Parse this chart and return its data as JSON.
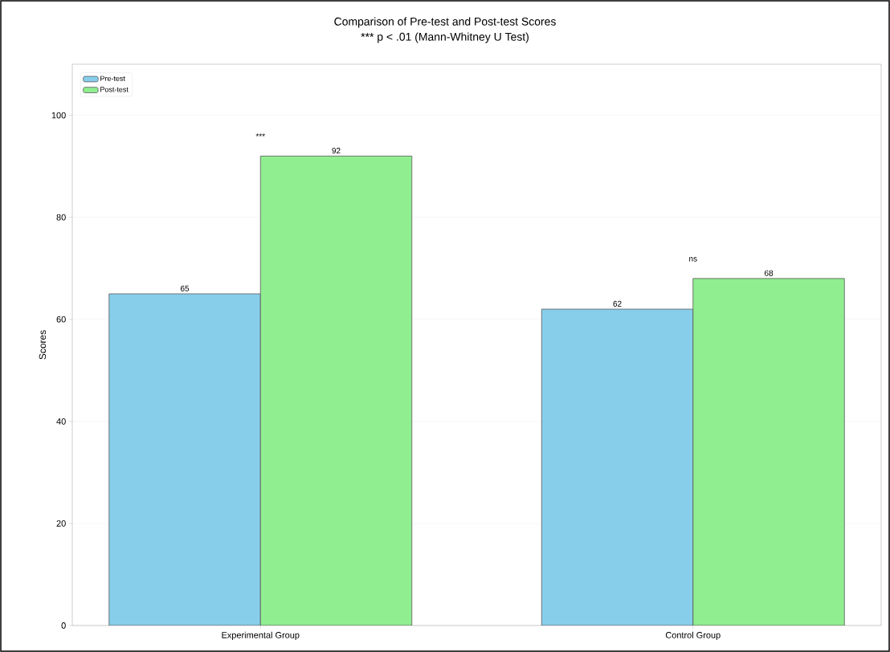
{
  "chart_data": {
    "type": "bar",
    "title": "Comparison of Pre-test and Post-test Scores",
    "subtitle": "*** p < .01 (Mann-Whitney U Test)",
    "ylabel": "Scores",
    "categories": [
      "Experimental Group",
      "Control Group"
    ],
    "series": [
      {
        "name": "Pre-test",
        "color": "#87ceeb",
        "values": [
          65,
          62
        ]
      },
      {
        "name": "Post-test",
        "color": "#90ee90",
        "values": [
          92,
          68
        ]
      }
    ],
    "ylim": [
      0,
      110
    ],
    "yticks": [
      0,
      20,
      40,
      60,
      80,
      100
    ],
    "grid": "y",
    "legend": "top left",
    "data_labels": true,
    "annotations": [
      "***",
      "ns"
    ]
  }
}
